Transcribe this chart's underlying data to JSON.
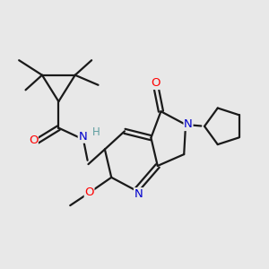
{
  "bg_color": "#e8e8e8",
  "bond_color": "#1a1a1a",
  "bond_width": 1.6,
  "atom_colors": {
    "O": "#ff0000",
    "N": "#0000cd",
    "H": "#5f9ea0"
  }
}
